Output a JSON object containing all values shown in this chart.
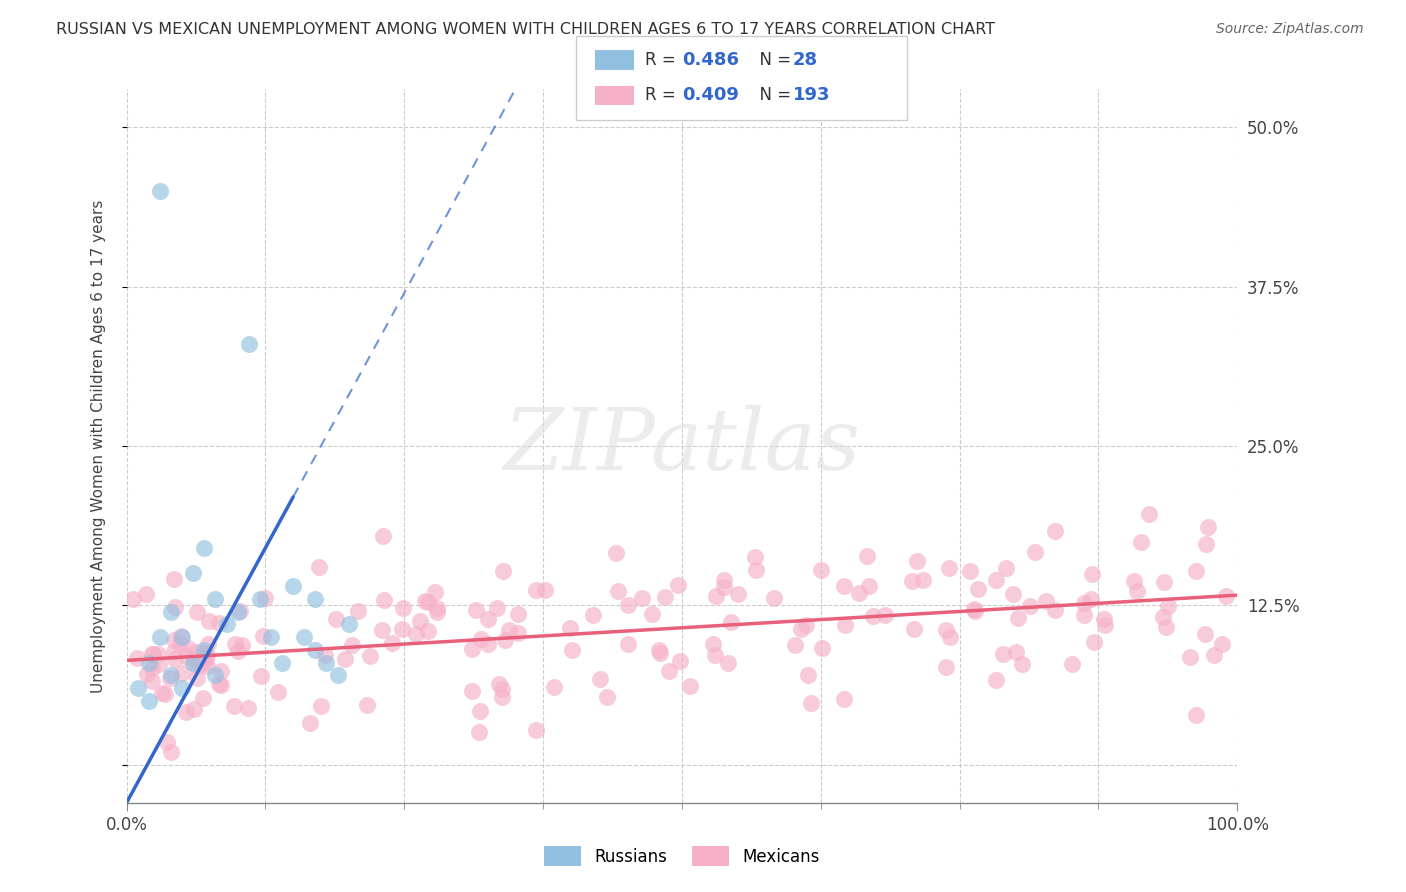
{
  "title": "RUSSIAN VS MEXICAN UNEMPLOYMENT AMONG WOMEN WITH CHILDREN AGES 6 TO 17 YEARS CORRELATION CHART",
  "source": "Source: ZipAtlas.com",
  "ylabel": "Unemployment Among Women with Children Ages 6 to 17 years",
  "xlim": [
    0,
    100
  ],
  "ylim": [
    -3,
    53
  ],
  "yticks": [
    0,
    12.5,
    25.0,
    37.5,
    50.0
  ],
  "ytick_right_labels": [
    "",
    "12.5%",
    "25.0%",
    "37.5%",
    "50.0%"
  ],
  "xticks_major": [
    0,
    100
  ],
  "xtick_major_labels": [
    "0.0%",
    "100.0%"
  ],
  "xticks_minor": [
    12.5,
    25.0,
    37.5,
    50.0,
    62.5,
    75.0,
    87.5
  ],
  "russian_R": "0.486",
  "russian_N": "28",
  "mexican_R": "0.409",
  "mexican_N": "193",
  "russian_scatter_color": "#92C0E0",
  "mexican_scatter_color": "#F5B0C8",
  "russian_line_color": "#3366CC",
  "mexican_line_color": "#E8607A",
  "accent_color": "#3366CC",
  "grid_color": "#CCCCCC",
  "bg_color": "#FFFFFF",
  "watermark_text": "ZIPatlas",
  "bottom_legend_russians": "Russians",
  "bottom_legend_mexicans": "Mexicans",
  "russian_x": [
    1,
    2,
    2,
    3,
    3,
    4,
    4,
    5,
    5,
    6,
    6,
    7,
    7,
    8,
    8,
    9,
    10,
    11,
    12,
    13,
    14,
    15,
    16,
    17,
    17,
    18,
    19,
    20
  ],
  "russian_y": [
    6,
    5,
    8,
    10,
    45,
    7,
    12,
    6,
    10,
    8,
    15,
    9,
    17,
    7,
    13,
    11,
    12,
    33,
    13,
    10,
    8,
    14,
    10,
    9,
    13,
    8,
    7,
    11
  ],
  "mexican_seed": 123
}
